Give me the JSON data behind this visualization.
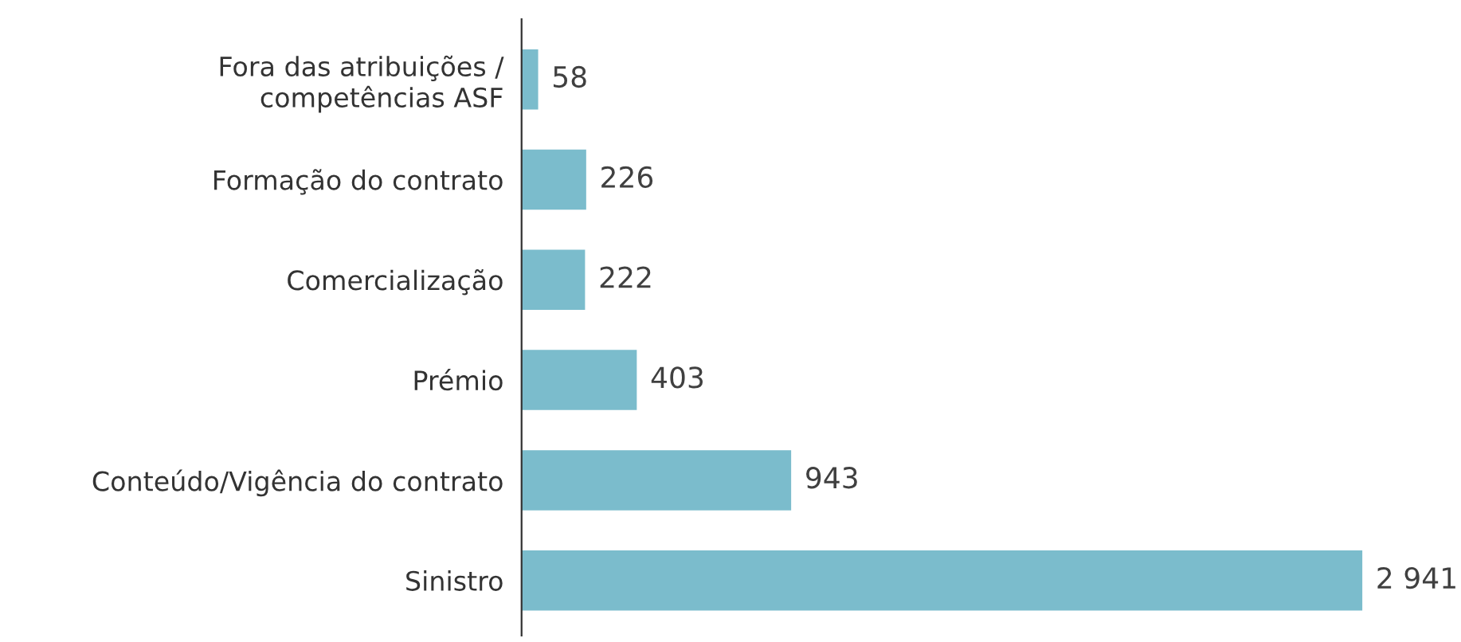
{
  "chart_data": {
    "type": "bar",
    "orientation": "horizontal",
    "categories": [
      "Fora das atribuições /\ncompetências ASF",
      "Formação do contrato",
      "Comercialização",
      "Prémio",
      "Conteúdo/Vigência do contrato",
      "Sinistro"
    ],
    "values": [
      58,
      226,
      222,
      403,
      943,
      2941
    ],
    "value_labels": [
      "58",
      "226",
      "222",
      "403",
      "943",
      "2 941"
    ],
    "color": "#7bbccc",
    "grid": false,
    "legend": false
  }
}
